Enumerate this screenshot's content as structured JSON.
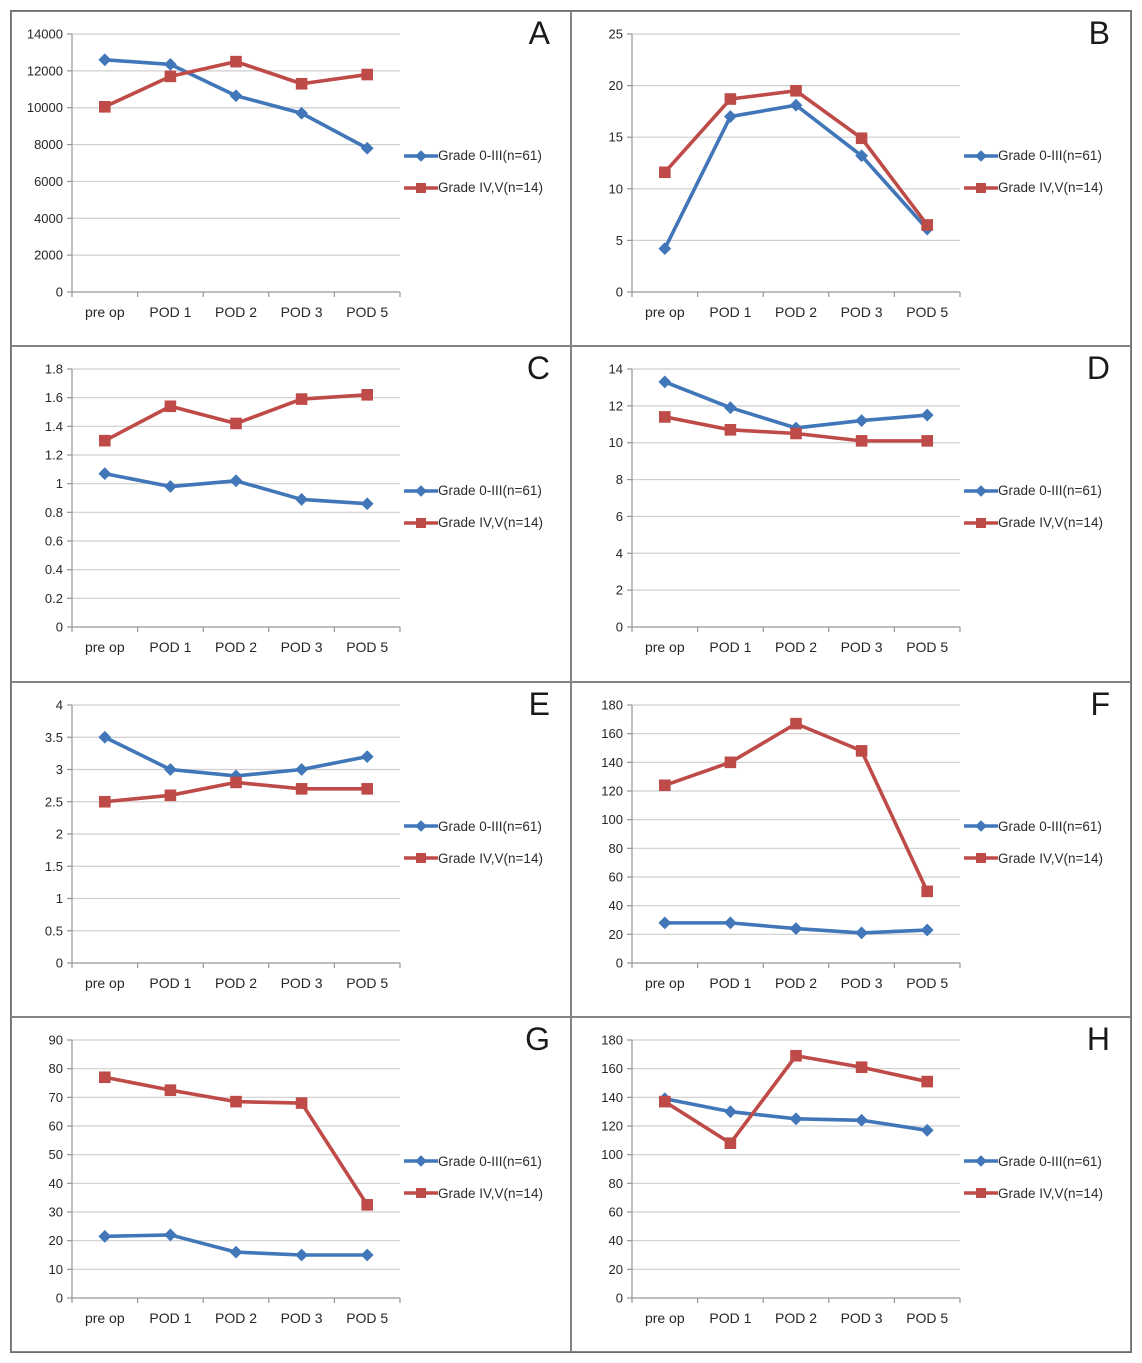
{
  "figure": {
    "background": "#ffffff",
    "grid_color": "#cfcfcf",
    "axis_color": "#969696",
    "blue_accent": "#4176b8",
    "red_accent": "#be4b48"
  },
  "chart_data": [
    {
      "type": "line",
      "panel_label": "A",
      "categories": [
        "pre op",
        "POD 1",
        "POD 2",
        "POD 3",
        "POD 5"
      ],
      "series": [
        {
          "name": "Grade 0-III(n=61)",
          "marker": "diamond",
          "color": "#4176b8",
          "values": [
            12600,
            12350,
            10650,
            9700,
            7800
          ]
        },
        {
          "name": "Grade IV,V(n=14)",
          "marker": "square",
          "color": "#be4b48",
          "values": [
            10050,
            11700,
            12500,
            11300,
            11800
          ]
        }
      ],
      "ylim": [
        0,
        14000
      ],
      "ytick_step": 2000,
      "grid": true,
      "legend_position": "right"
    },
    {
      "type": "line",
      "panel_label": "B",
      "categories": [
        "pre op",
        "POD 1",
        "POD 2",
        "POD 3",
        "POD 5"
      ],
      "series": [
        {
          "name": "Grade 0-III(n=61)",
          "marker": "diamond",
          "color": "#4176b8",
          "values": [
            4.2,
            17,
            18.1,
            13.2,
            6.1
          ]
        },
        {
          "name": "Grade IV,V(n=14)",
          "marker": "square",
          "color": "#be4b48",
          "values": [
            11.6,
            18.7,
            19.5,
            14.9,
            6.5
          ]
        }
      ],
      "ylim": [
        0,
        25
      ],
      "ytick_step": 5,
      "grid": true,
      "legend_position": "right"
    },
    {
      "type": "line",
      "panel_label": "C",
      "categories": [
        "pre op",
        "POD 1",
        "POD 2",
        "POD 3",
        "POD 5"
      ],
      "series": [
        {
          "name": "Grade 0-III(n=61)",
          "marker": "diamond",
          "color": "#4176b8",
          "values": [
            1.07,
            0.98,
            1.02,
            0.89,
            0.86
          ]
        },
        {
          "name": "Grade IV,V(n=14)",
          "marker": "square",
          "color": "#be4b48",
          "values": [
            1.3,
            1.54,
            1.42,
            1.59,
            1.62
          ]
        }
      ],
      "ylim": [
        0,
        1.8
      ],
      "ytick_step": 0.2,
      "grid": true,
      "legend_position": "right"
    },
    {
      "type": "line",
      "panel_label": "D",
      "categories": [
        "pre op",
        "POD 1",
        "POD 2",
        "POD 3",
        "POD 5"
      ],
      "series": [
        {
          "name": "Grade 0-III(n=61)",
          "marker": "diamond",
          "color": "#4176b8",
          "values": [
            13.3,
            11.9,
            10.8,
            11.2,
            11.5
          ]
        },
        {
          "name": "Grade IV,V(n=14)",
          "marker": "square",
          "color": "#be4b48",
          "values": [
            11.4,
            10.7,
            10.5,
            10.1,
            10.1
          ]
        }
      ],
      "ylim": [
        0,
        14
      ],
      "ytick_step": 2,
      "grid": true,
      "legend_position": "right"
    },
    {
      "type": "line",
      "panel_label": "E",
      "categories": [
        "pre op",
        "POD 1",
        "POD 2",
        "POD 3",
        "POD 5"
      ],
      "series": [
        {
          "name": "Grade 0-III(n=61)",
          "marker": "diamond",
          "color": "#4176b8",
          "values": [
            3.5,
            3,
            2.9,
            3,
            3.2
          ]
        },
        {
          "name": "Grade IV,V(n=14)",
          "marker": "square",
          "color": "#be4b48",
          "values": [
            2.5,
            2.6,
            2.8,
            2.7,
            2.7
          ]
        }
      ],
      "ylim": [
        0,
        4
      ],
      "ytick_step": 0.5,
      "grid": true,
      "legend_position": "right"
    },
    {
      "type": "line",
      "panel_label": "F",
      "categories": [
        "pre op",
        "POD 1",
        "POD 2",
        "POD 3",
        "POD 5"
      ],
      "series": [
        {
          "name": "Grade 0-III(n=61)",
          "marker": "diamond",
          "color": "#4176b8",
          "values": [
            28,
            28,
            24,
            21,
            23
          ]
        },
        {
          "name": "Grade IV,V(n=14)",
          "marker": "square",
          "color": "#be4b48",
          "values": [
            124,
            140,
            167,
            148,
            50
          ]
        }
      ],
      "ylim": [
        0,
        180
      ],
      "ytick_step": 20,
      "grid": true,
      "legend_position": "right"
    },
    {
      "type": "line",
      "panel_label": "G",
      "categories": [
        "pre op",
        "POD 1",
        "POD 2",
        "POD 3",
        "POD 5"
      ],
      "series": [
        {
          "name": "Grade 0-III(n=61)",
          "marker": "diamond",
          "color": "#4176b8",
          "values": [
            21.5,
            22,
            16,
            15,
            15
          ]
        },
        {
          "name": "Grade IV,V(n=14)",
          "marker": "square",
          "color": "#be4b48",
          "values": [
            77,
            72.5,
            68.5,
            68,
            32.5
          ]
        }
      ],
      "ylim": [
        0,
        90
      ],
      "ytick_step": 10,
      "grid": true,
      "legend_position": "right"
    },
    {
      "type": "line",
      "panel_label": "H",
      "categories": [
        "pre op",
        "POD 1",
        "POD 2",
        "POD 3",
        "POD 5"
      ],
      "series": [
        {
          "name": "Grade 0-III(n=61)",
          "marker": "diamond",
          "color": "#4176b8",
          "values": [
            139,
            130,
            125,
            124,
            117
          ]
        },
        {
          "name": "Grade IV,V(n=14)",
          "marker": "square",
          "color": "#be4b48",
          "values": [
            137,
            108,
            169,
            161,
            151
          ]
        }
      ],
      "ylim": [
        0,
        180
      ],
      "ytick_step": 20,
      "grid": true,
      "legend_position": "right"
    }
  ]
}
